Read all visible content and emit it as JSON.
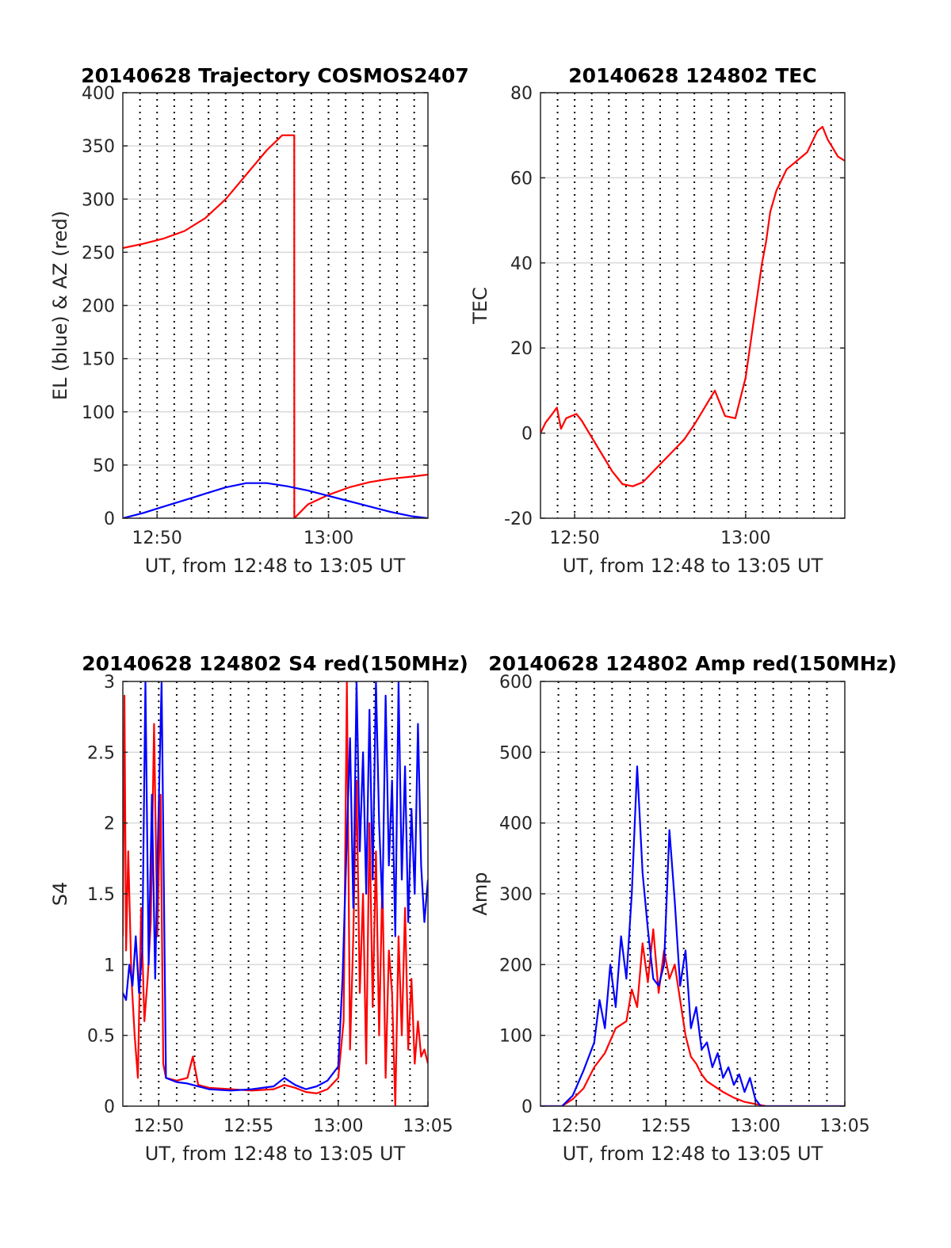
{
  "colors": {
    "el": "#0000ff",
    "az": "#ff0000",
    "grid": "#000000",
    "hgrid": "#d9d9d9"
  },
  "chart_data": [
    {
      "type": "line",
      "title": "20140628 Trajectory COSMOS2407",
      "xlabel": "UT, from 12:48 to 13:05 UT",
      "ylabel": "EL (blue) & AZ (red)",
      "xlim": [
        12.8,
        13.0967
      ],
      "xticks": [
        {
          "t": 12.8333,
          "label": "12:50"
        },
        {
          "t": 13.0,
          "label": "13:00"
        }
      ],
      "ylim": [
        0,
        400
      ],
      "yticks": [
        0,
        50,
        100,
        150,
        200,
        250,
        300,
        350,
        400
      ],
      "series": [
        {
          "key": "az",
          "color": "#ff0000",
          "x": [
            12.8,
            12.82,
            12.84,
            12.86,
            12.88,
            12.9,
            12.92,
            12.94,
            12.955,
            12.9667,
            12.9668,
            12.98,
            13.0,
            13.02,
            13.04,
            13.06,
            13.08,
            13.0967
          ],
          "y": [
            254,
            258,
            263,
            270,
            282,
            300,
            323,
            346,
            360,
            360,
            0,
            13,
            22,
            29,
            34,
            37,
            39,
            41
          ]
        },
        {
          "key": "el",
          "color": "#0000ff",
          "x": [
            12.8,
            12.82,
            12.84,
            12.86,
            12.88,
            12.9,
            12.91,
            12.92,
            12.94,
            12.96,
            12.98,
            13.0,
            13.02,
            13.04,
            13.06,
            13.08,
            13.0967
          ],
          "y": [
            0,
            5,
            11,
            17,
            23,
            29,
            31,
            33,
            33,
            30,
            26,
            21,
            16,
            11,
            6,
            2,
            0
          ]
        }
      ]
    },
    {
      "type": "line",
      "title": "20140628 124802 TEC",
      "xlabel": "UT, from 12:48 to 13:05 UT",
      "ylabel": "TEC",
      "xlim": [
        12.8,
        13.0967
      ],
      "xticks": [
        {
          "t": 12.8333,
          "label": "12:50"
        },
        {
          "t": 13.0,
          "label": "13:00"
        }
      ],
      "ylim": [
        -20,
        80
      ],
      "yticks": [
        -20,
        0,
        20,
        40,
        60,
        80
      ],
      "series": [
        {
          "key": "tec",
          "color": "#ff0000",
          "x": [
            12.8,
            12.805,
            12.81,
            12.816,
            12.82,
            12.825,
            12.83,
            12.835,
            12.84,
            12.85,
            12.86,
            12.87,
            12.88,
            12.89,
            12.9,
            12.91,
            12.92,
            12.93,
            12.94,
            12.95,
            12.96,
            12.97,
            12.98,
            12.99,
            13.0,
            13.01,
            13.016,
            13.02,
            13.024,
            13.03,
            13.04,
            13.05,
            13.06,
            13.07,
            13.075,
            13.08,
            13.085,
            13.09,
            13.0967
          ],
          "y": [
            0,
            2.5,
            4,
            6,
            1,
            3.5,
            4,
            4.5,
            3,
            -1,
            -5,
            -9,
            -12,
            -12.5,
            -11.5,
            -9,
            -6.5,
            -4,
            -1.5,
            2,
            6,
            10,
            4,
            3.5,
            13,
            30,
            40,
            45,
            52,
            57,
            62,
            64,
            66,
            71,
            72,
            69,
            67,
            65,
            64
          ]
        }
      ]
    },
    {
      "type": "line",
      "title": "20140628 124802 S4 red(150MHz)",
      "xlabel": "UT, from 12:48 to 13:05 UT",
      "ylabel": "S4",
      "xlim": [
        12.8,
        13.0833
      ],
      "xticks": [
        {
          "t": 12.8333,
          "label": "12:50"
        },
        {
          "t": 12.9167,
          "label": "12:55"
        },
        {
          "t": 13.0,
          "label": "13:00"
        },
        {
          "t": 13.0833,
          "label": "13:05"
        }
      ],
      "ylim": [
        0,
        3
      ],
      "yticks": [
        0,
        0.5,
        1,
        1.5,
        2,
        2.5,
        3
      ],
      "series": [
        {
          "key": "s4red",
          "color": "#ff0000",
          "x": [
            12.8,
            12.8015,
            12.803,
            12.805,
            12.808,
            12.811,
            12.814,
            12.817,
            12.82,
            12.823,
            12.826,
            12.829,
            12.832,
            12.835,
            12.8375,
            12.84,
            12.85,
            12.86,
            12.865,
            12.87,
            12.88,
            12.9,
            12.92,
            12.94,
            12.95,
            12.96,
            12.97,
            12.98,
            12.99,
            13.0,
            13.005,
            13.008,
            13.011,
            13.014,
            13.017,
            13.02,
            13.023,
            13.026,
            13.029,
            13.032,
            13.035,
            13.038,
            13.041,
            13.044,
            13.047,
            13.05,
            13.053,
            13.056,
            13.059,
            13.062,
            13.065,
            13.068,
            13.071,
            13.074,
            13.077,
            13.08,
            13.0833
          ],
          "y": [
            1.2,
            2.9,
            1.1,
            1.8,
            0.9,
            0.5,
            0.2,
            1.4,
            0.6,
            0.9,
            1.3,
            2.7,
            1.2,
            2.2,
            0.3,
            0.2,
            0.18,
            0.2,
            0.35,
            0.15,
            0.13,
            0.12,
            0.11,
            0.12,
            0.15,
            0.13,
            0.1,
            0.09,
            0.12,
            0.2,
            0.6,
            3.0,
            0.4,
            1.2,
            2.3,
            0.8,
            1.5,
            0.3,
            2.0,
            0.7,
            1.8,
            0.5,
            1.6,
            0.2,
            1.1,
            0.8,
            0.0,
            1.2,
            0.5,
            1.4,
            0.4,
            0.9,
            0.3,
            0.6,
            0.35,
            0.4,
            0.3
          ]
        },
        {
          "key": "s4blue",
          "color": "#0000ff",
          "x": [
            12.8,
            12.803,
            12.806,
            12.809,
            12.812,
            12.815,
            12.818,
            12.821,
            12.824,
            12.827,
            12.83,
            12.833,
            12.836,
            12.84,
            12.85,
            12.86,
            12.87,
            12.88,
            12.9,
            12.92,
            12.94,
            12.95,
            12.96,
            12.97,
            12.98,
            12.99,
            13.0,
            13.004,
            13.008,
            13.011,
            13.014,
            13.017,
            13.02,
            13.023,
            13.026,
            13.029,
            13.032,
            13.035,
            13.038,
            13.041,
            13.044,
            13.047,
            13.05,
            13.053,
            13.056,
            13.059,
            13.062,
            13.065,
            13.068,
            13.071,
            13.074,
            13.077,
            13.08,
            13.0833
          ],
          "y": [
            0.8,
            0.75,
            1.0,
            0.85,
            1.2,
            0.8,
            1.1,
            3.0,
            1.0,
            2.2,
            0.9,
            2.0,
            3.0,
            0.2,
            0.17,
            0.16,
            0.14,
            0.12,
            0.11,
            0.12,
            0.14,
            0.2,
            0.15,
            0.12,
            0.14,
            0.18,
            0.28,
            0.9,
            1.9,
            2.6,
            1.4,
            3.0,
            1.8,
            2.5,
            1.5,
            2.8,
            1.6,
            3.0,
            2.0,
            1.4,
            2.9,
            1.7,
            2.3,
            1.2,
            3.0,
            1.6,
            2.4,
            1.3,
            2.1,
            1.5,
            2.7,
            1.7,
            1.3,
            1.6
          ]
        }
      ]
    },
    {
      "type": "line",
      "title": "20140628 124802 Amp red(150MHz)",
      "xlabel": "UT, from 12:48 to 13:05 UT",
      "ylabel": "Amp",
      "xlim": [
        12.8,
        13.0833
      ],
      "xticks": [
        {
          "t": 12.8333,
          "label": "12:50"
        },
        {
          "t": 12.9167,
          "label": "12:55"
        },
        {
          "t": 13.0,
          "label": "13:00"
        },
        {
          "t": 13.0833,
          "label": "13:05"
        }
      ],
      "ylim": [
        0,
        600
      ],
      "yticks": [
        0,
        100,
        200,
        300,
        400,
        500,
        600
      ],
      "series": [
        {
          "key": "ampred",
          "color": "#ff0000",
          "x": [
            12.8,
            12.82,
            12.83,
            12.84,
            12.85,
            12.86,
            12.87,
            12.88,
            12.885,
            12.89,
            12.895,
            12.9,
            12.905,
            12.91,
            12.915,
            12.92,
            12.925,
            12.93,
            12.935,
            12.94,
            12.945,
            12.95,
            12.955,
            12.96,
            12.97,
            12.98,
            12.99,
            13.0,
            13.01,
            13.02,
            13.05,
            13.0833
          ],
          "y": [
            0,
            0,
            10,
            25,
            55,
            75,
            110,
            120,
            165,
            140,
            230,
            175,
            250,
            160,
            220,
            180,
            200,
            150,
            100,
            70,
            60,
            45,
            35,
            30,
            20,
            12,
            6,
            3,
            0,
            0,
            0,
            0
          ]
        },
        {
          "key": "ampblue",
          "color": "#0000ff",
          "x": [
            12.8,
            12.82,
            12.83,
            12.84,
            12.85,
            12.855,
            12.86,
            12.865,
            12.87,
            12.875,
            12.88,
            12.885,
            12.89,
            12.895,
            12.9,
            12.905,
            12.91,
            12.915,
            12.92,
            12.925,
            12.93,
            12.935,
            12.94,
            12.945,
            12.95,
            12.955,
            12.96,
            12.965,
            12.97,
            12.975,
            12.98,
            12.985,
            12.99,
            12.995,
            13.0,
            13.005,
            13.02,
            13.05,
            13.0833
          ],
          "y": [
            0,
            0,
            15,
            50,
            90,
            150,
            110,
            200,
            140,
            240,
            180,
            300,
            480,
            330,
            250,
            180,
            170,
            200,
            390,
            290,
            170,
            220,
            110,
            140,
            80,
            90,
            55,
            75,
            40,
            55,
            30,
            45,
            20,
            40,
            10,
            0,
            0,
            0,
            0
          ]
        }
      ]
    }
  ]
}
